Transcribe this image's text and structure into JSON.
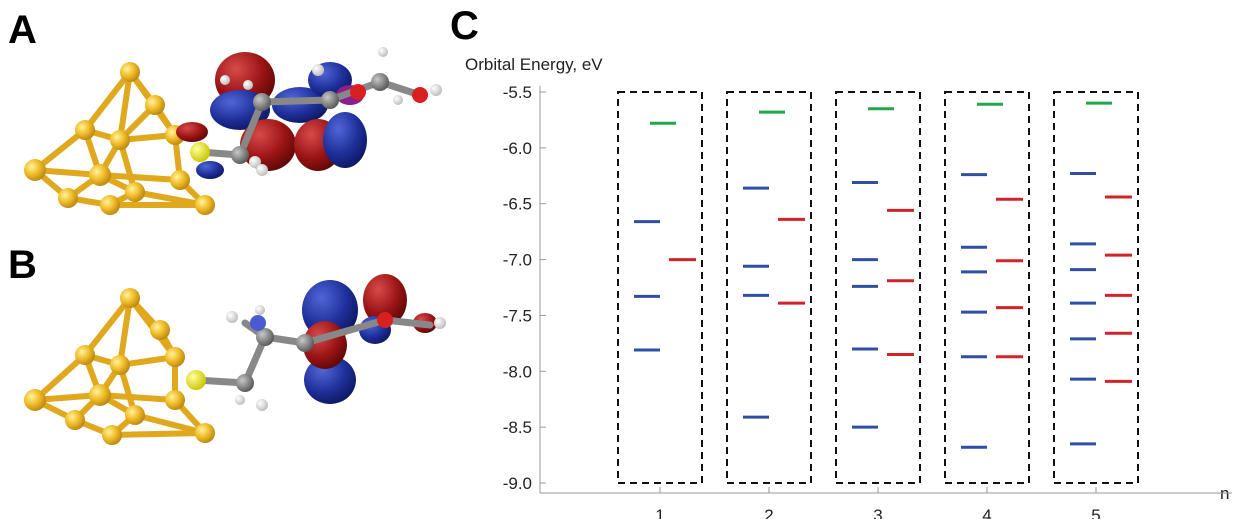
{
  "panels": {
    "a": "A",
    "b": "B",
    "c": "C"
  },
  "colors": {
    "gold": "#e8b320",
    "homo_blue": "#2e4fa3",
    "lumo_red": "#d3222a",
    "top_green": "#1ea84a",
    "frame": "#111111"
  },
  "chart_data": {
    "type": "scatter",
    "title": "",
    "ylabel": "Orbital Energy, eV",
    "xlabel": "n",
    "ylim": [
      -9.0,
      -5.5
    ],
    "yticks": [
      -5.5,
      -6.0,
      -6.5,
      -7.0,
      -7.5,
      -8.0,
      -8.5,
      -9.0
    ],
    "ytick_labels": [
      "-5.5",
      "-6.0",
      "-6.5",
      "-7.0",
      "-7.5",
      "-8.0",
      "-8.5",
      "-9.0"
    ],
    "xticks": [
      1,
      2,
      3,
      4,
      5
    ],
    "xtick_labels": [
      "1",
      "2",
      "3",
      "4",
      "5"
    ],
    "series": [
      {
        "color": "#1ea84a",
        "x": [
          1,
          2,
          3,
          4,
          5
        ],
        "values": [
          [
            -5.78
          ],
          [
            -5.68
          ],
          [
            -5.65
          ],
          [
            -5.61
          ],
          [
            -5.6
          ]
        ]
      },
      {
        "color": "#2e4fa3",
        "x": [
          1,
          2,
          3,
          4,
          5
        ],
        "values": [
          [
            -6.66,
            -7.33,
            -7.81
          ],
          [
            -6.36,
            -7.06,
            -7.32,
            -8.41
          ],
          [
            -6.31,
            -7.0,
            -7.24,
            -7.8,
            -8.5
          ],
          [
            -6.24,
            -6.89,
            -7.11,
            -7.47,
            -7.87,
            -8.68
          ],
          [
            -6.23,
            -6.86,
            -7.09,
            -7.39,
            -7.71,
            -8.07,
            -8.65
          ]
        ]
      },
      {
        "color": "#d3222a",
        "x": [
          1,
          2,
          3,
          4,
          5
        ],
        "values": [
          [
            -7.0
          ],
          [
            -6.64,
            -7.39
          ],
          [
            -6.56,
            -7.19,
            -7.85
          ],
          [
            -6.46,
            -7.01,
            -7.43,
            -7.87
          ],
          [
            -6.44,
            -6.96,
            -7.32,
            -7.66,
            -8.09
          ]
        ]
      }
    ]
  }
}
